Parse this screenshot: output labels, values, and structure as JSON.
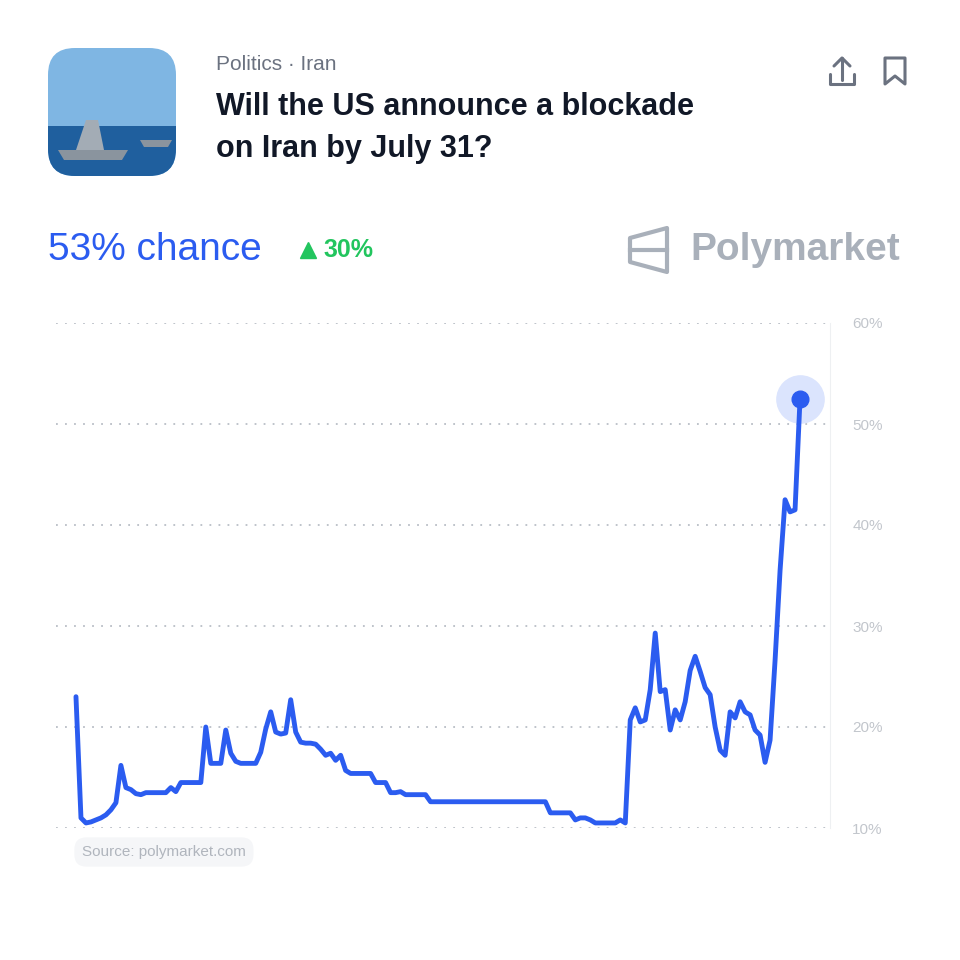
{
  "header": {
    "category": "Politics · Iran",
    "title": "Will the US announce a blockade on Iran by July 31?",
    "chance": "53% chance",
    "change": "30%",
    "brand": "Polymarket",
    "source": "Source: polymarket.com"
  },
  "chart_data": {
    "type": "line",
    "color": "#2b5cf0",
    "marker": "circle",
    "grid": true,
    "tick_labels": "y",
    "xlim": [
      -4,
      151
    ],
    "ylim": [
      10,
      60
    ],
    "yticks": [
      {
        "value": 10,
        "label": "10%"
      },
      {
        "value": 20,
        "label": "20%"
      },
      {
        "value": 30,
        "label": "30%"
      },
      {
        "value": 40,
        "label": "40%"
      },
      {
        "value": 50,
        "label": "50%"
      },
      {
        "value": 60,
        "label": "60%"
      }
    ],
    "values": [
      23.0,
      11.0,
      10.5,
      10.6,
      10.8,
      11.0,
      11.3,
      11.8,
      12.5,
      16.2,
      14.0,
      13.8,
      13.4,
      13.3,
      13.5,
      13.5,
      13.5,
      13.5,
      13.5,
      14.0,
      13.6,
      14.5,
      14.5,
      14.5,
      14.5,
      14.5,
      20.0,
      16.4,
      16.4,
      16.4,
      19.7,
      17.4,
      16.6,
      16.4,
      16.4,
      16.4,
      16.4,
      17.5,
      19.8,
      21.5,
      19.5,
      19.3,
      19.4,
      22.7,
      19.5,
      18.5,
      18.4,
      18.4,
      18.3,
      17.8,
      17.2,
      17.4,
      16.7,
      17.2,
      15.7,
      15.4,
      15.4,
      15.4,
      15.4,
      15.4,
      14.5,
      14.5,
      14.5,
      13.5,
      13.5,
      13.6,
      13.3,
      13.3,
      13.3,
      13.3,
      13.3,
      12.6,
      12.6,
      12.6,
      12.6,
      12.6,
      12.6,
      12.6,
      12.6,
      12.6,
      12.6,
      12.6,
      12.6,
      12.6,
      12.6,
      12.6,
      12.6,
      12.6,
      12.6,
      12.6,
      12.6,
      12.6,
      12.6,
      12.6,
      12.6,
      11.5,
      11.5,
      11.5,
      11.5,
      11.5,
      10.8,
      11.0,
      11.0,
      10.8,
      10.5,
      10.5,
      10.5,
      10.5,
      10.5,
      10.8,
      10.5,
      20.7,
      21.9,
      20.5,
      20.7,
      23.7,
      29.3,
      23.5,
      23.7,
      19.7,
      21.7,
      20.7,
      22.5,
      25.6,
      27.0,
      25.5,
      23.9,
      23.2,
      20.0,
      17.7,
      17.2,
      21.5,
      20.9,
      22.5,
      21.5,
      21.2,
      19.7,
      19.2,
      16.5,
      18.7,
      26.6,
      35.5,
      42.5,
      41.3,
      41.5,
      52.5
    ]
  }
}
